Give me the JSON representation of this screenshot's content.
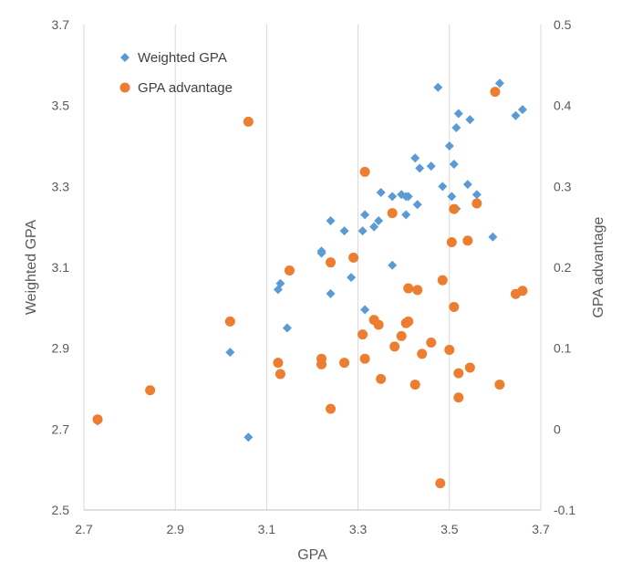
{
  "chart_data": {
    "type": "scatter",
    "xlabel": "GPA",
    "ylabel": "Weighted GPA",
    "y2label": "GPA advantage",
    "xlim": [
      2.7,
      3.7
    ],
    "ylim": [
      2.5,
      3.7
    ],
    "y2lim": [
      -0.1,
      0.5
    ],
    "xticks": [
      "2.7",
      "2.9",
      "3.1",
      "3.3",
      "3.5",
      "3.7"
    ],
    "yticks": [
      "2.5",
      "2.7",
      "2.9",
      "3.1",
      "3.3",
      "3.5",
      "3.7"
    ],
    "y2ticks": [
      "-0.1",
      "0",
      "0.1",
      "0.2",
      "0.3",
      "0.4",
      "0.5"
    ],
    "grid": "vertical",
    "legend_position": "top-left",
    "series": [
      {
        "name": "Weighted GPA",
        "axis": "left",
        "marker": "diamond",
        "color": "#5b9bd5",
        "points": [
          [
            2.73,
            2.72
          ],
          [
            3.02,
            2.89
          ],
          [
            3.06,
            2.68
          ],
          [
            3.125,
            3.045
          ],
          [
            3.13,
            3.06
          ],
          [
            3.145,
            2.95
          ],
          [
            3.22,
            3.14
          ],
          [
            3.22,
            3.135
          ],
          [
            3.24,
            3.215
          ],
          [
            3.24,
            3.035
          ],
          [
            3.27,
            3.19
          ],
          [
            3.285,
            3.075
          ],
          [
            3.31,
            3.19
          ],
          [
            3.315,
            2.995
          ],
          [
            3.315,
            3.23
          ],
          [
            3.335,
            3.2
          ],
          [
            3.345,
            3.215
          ],
          [
            3.35,
            3.285
          ],
          [
            3.375,
            3.275
          ],
          [
            3.375,
            3.105
          ],
          [
            3.395,
            3.28
          ],
          [
            3.405,
            3.275
          ],
          [
            3.41,
            3.275
          ],
          [
            3.405,
            3.23
          ],
          [
            3.425,
            3.37
          ],
          [
            3.43,
            3.255
          ],
          [
            3.435,
            3.345
          ],
          [
            3.46,
            3.35
          ],
          [
            3.475,
            3.545
          ],
          [
            3.485,
            3.3
          ],
          [
            3.5,
            3.4
          ],
          [
            3.505,
            3.275
          ],
          [
            3.51,
            3.355
          ],
          [
            3.515,
            3.245
          ],
          [
            3.515,
            3.445
          ],
          [
            3.52,
            3.48
          ],
          [
            3.54,
            3.305
          ],
          [
            3.545,
            3.465
          ],
          [
            3.56,
            3.28
          ],
          [
            3.595,
            3.175
          ],
          [
            3.61,
            3.555
          ],
          [
            3.645,
            3.475
          ],
          [
            3.66,
            3.49
          ]
        ]
      },
      {
        "name": "GPA advantage",
        "axis": "right",
        "marker": "circle",
        "color": "#ed7d31",
        "points": [
          [
            2.73,
            0.012
          ],
          [
            2.845,
            0.048
          ],
          [
            3.02,
            0.133
          ],
          [
            3.06,
            0.38
          ],
          [
            3.125,
            0.082
          ],
          [
            3.13,
            0.068
          ],
          [
            3.15,
            0.196
          ],
          [
            3.22,
            0.087
          ],
          [
            3.22,
            0.08
          ],
          [
            3.24,
            0.025
          ],
          [
            3.24,
            0.206
          ],
          [
            3.27,
            0.082
          ],
          [
            3.29,
            0.212
          ],
          [
            3.31,
            0.117
          ],
          [
            3.315,
            0.318
          ],
          [
            3.315,
            0.087
          ],
          [
            3.335,
            0.135
          ],
          [
            3.345,
            0.129
          ],
          [
            3.35,
            0.062
          ],
          [
            3.375,
            0.267
          ],
          [
            3.38,
            0.102
          ],
          [
            3.395,
            0.115
          ],
          [
            3.405,
            0.131
          ],
          [
            3.41,
            0.174
          ],
          [
            3.41,
            0.133
          ],
          [
            3.425,
            0.055
          ],
          [
            3.43,
            0.172
          ],
          [
            3.44,
            0.093
          ],
          [
            3.46,
            0.107
          ],
          [
            3.48,
            -0.067
          ],
          [
            3.485,
            0.184
          ],
          [
            3.5,
            0.098
          ],
          [
            3.505,
            0.231
          ],
          [
            3.51,
            0.151
          ],
          [
            3.51,
            0.272
          ],
          [
            3.52,
            0.069
          ],
          [
            3.52,
            0.039
          ],
          [
            3.54,
            0.233
          ],
          [
            3.545,
            0.076
          ],
          [
            3.56,
            0.279
          ],
          [
            3.6,
            0.417
          ],
          [
            3.61,
            0.055
          ],
          [
            3.645,
            0.167
          ],
          [
            3.66,
            0.171
          ]
        ]
      }
    ]
  }
}
